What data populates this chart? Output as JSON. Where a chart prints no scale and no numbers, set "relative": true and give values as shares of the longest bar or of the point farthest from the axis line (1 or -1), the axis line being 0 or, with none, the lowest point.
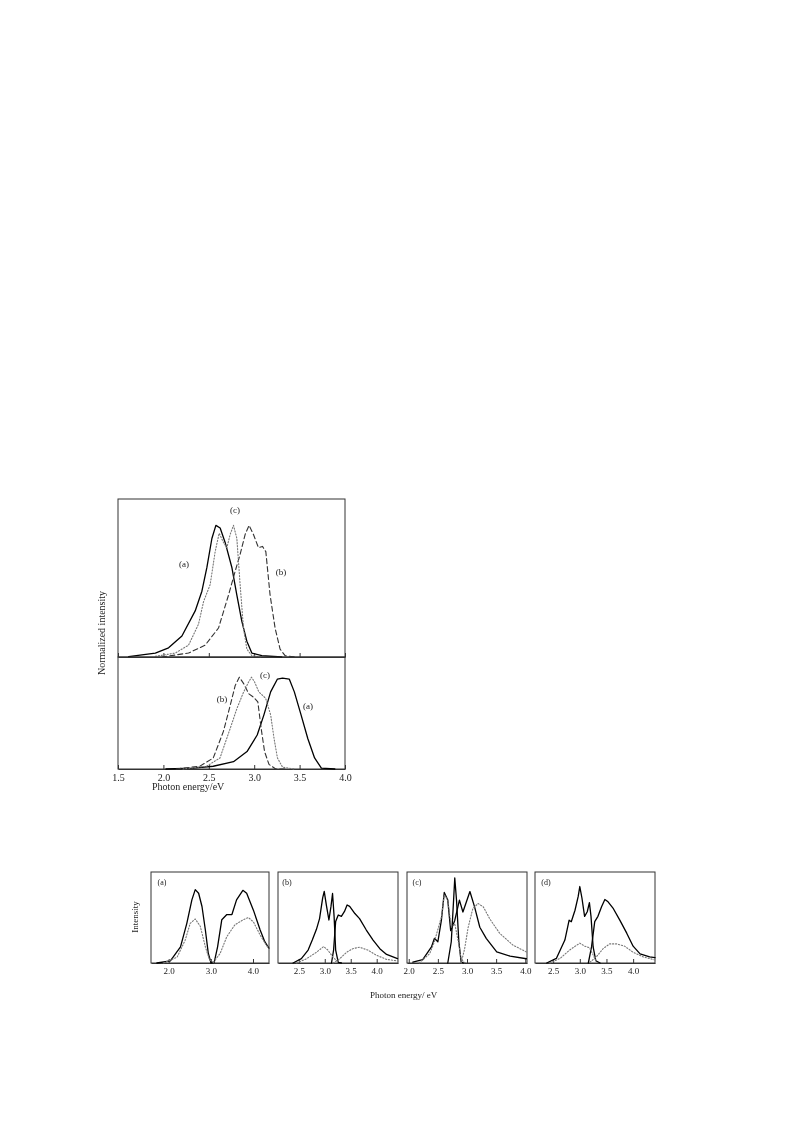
{
  "chart_data": [
    {
      "type": "line",
      "relative": true,
      "ylabel": "Normalized intensity",
      "xlim": [
        1.5,
        4.0
      ],
      "tick_labels": false,
      "xticks": [
        1.5,
        2,
        2.5,
        3,
        3.5,
        4
      ],
      "annotations": [
        "(a)",
        "(b)",
        "(c)"
      ],
      "series": [
        {
          "color": "#000000",
          "line_style": "solid",
          "x": [
            1.617,
            1.911,
            2.057,
            2.204,
            2.35,
            2.424,
            2.479,
            2.534,
            2.578,
            2.625,
            2.68,
            2.754,
            2.809,
            2.864,
            2.919,
            2.974,
            3.084,
            3.304
          ],
          "values": [
            0.003,
            0.03,
            0.07,
            0.16,
            0.35,
            0.5,
            0.68,
            0.9,
            1,
            0.98,
            0.87,
            0.68,
            0.47,
            0.27,
            0.12,
            0.03,
            0.01,
            0
          ]
        },
        {
          "color": "#333333",
          "line_style": "dashed",
          "x": [
            1.984,
            2.277,
            2.46,
            2.607,
            2.717,
            2.79,
            2.845,
            2.9,
            2.944,
            2.992,
            3.047,
            3.091,
            3.128,
            3.175,
            3.23,
            3.285,
            3.34,
            3.45
          ],
          "values": [
            0,
            0.03,
            0.09,
            0.22,
            0.47,
            0.65,
            0.78,
            0.93,
            1,
            0.93,
            0.83,
            0.84,
            0.8,
            0.47,
            0.22,
            0.06,
            0.01,
            0
          ]
        },
        {
          "color": "#777777",
          "line_style": "dotted",
          "x": [
            1.911,
            2.131,
            2.277,
            2.387,
            2.442,
            2.515,
            2.57,
            2.614,
            2.662,
            2.699,
            2.735,
            2.772,
            2.809,
            2.845,
            2.882,
            2.919,
            2.974,
            3.084
          ],
          "values": [
            0.005,
            0.03,
            0.09,
            0.25,
            0.42,
            0.55,
            0.8,
            0.94,
            0.87,
            0.83,
            0.93,
            1,
            0.9,
            0.55,
            0.22,
            0.06,
            0.01,
            0
          ]
        }
      ]
    },
    {
      "type": "line",
      "relative": true,
      "xlabel": "Photon energy/eV",
      "xlim": [
        1.5,
        4.0
      ],
      "xticks": [
        1.5,
        {
          "value": 2,
          "label": "2.0"
        },
        2.5,
        {
          "value": 3,
          "label": "3.0"
        },
        3.5,
        {
          "value": 4,
          "label": "4.0"
        }
      ],
      "annotations": [
        "(b)",
        "(c)",
        "(a)"
      ],
      "series": [
        {
          "color": "#000000",
          "line_style": "solid",
          "x": [
            2.028,
            2.326,
            2.549,
            2.772,
            2.921,
            3.033,
            3.107,
            3.181,
            3.256,
            3.312,
            3.386,
            3.442,
            3.516,
            3.591,
            3.665,
            3.74,
            3.888
          ],
          "values": [
            0,
            0.01,
            0.03,
            0.08,
            0.19,
            0.37,
            0.59,
            0.84,
            0.98,
            0.99,
            0.98,
            0.84,
            0.59,
            0.33,
            0.12,
            0.01,
            0
          ]
        },
        {
          "color": "#333333",
          "line_style": "dashed",
          "x": [
            2.14,
            2.4,
            2.549,
            2.661,
            2.735,
            2.791,
            2.836,
            2.884,
            2.94,
            2.995,
            3.04,
            3.077,
            3.114,
            3.163,
            3.237,
            3.367
          ],
          "values": [
            0,
            0.03,
            0.12,
            0.41,
            0.69,
            0.91,
            1,
            0.93,
            0.82,
            0.78,
            0.73,
            0.44,
            0.19,
            0.05,
            0,
            0
          ]
        },
        {
          "color": "#777777",
          "line_style": "dotted",
          "x": [
            2.214,
            2.475,
            2.623,
            2.735,
            2.81,
            2.884,
            2.94,
            2.97,
            3.003,
            3.051,
            3.126,
            3.181,
            3.219,
            3.256,
            3.312,
            3.442
          ],
          "values": [
            0,
            0.03,
            0.12,
            0.44,
            0.66,
            0.84,
            0.95,
            1,
            0.95,
            0.84,
            0.77,
            0.59,
            0.33,
            0.12,
            0.02,
            0
          ]
        }
      ]
    },
    {
      "type": "line",
      "relative": true,
      "ylabel": "Intensity",
      "xlim": [
        1.58,
        4.38
      ],
      "xticks": [
        {
          "value": 2,
          "label": "2.0"
        },
        {
          "value": 3,
          "label": "3.0"
        },
        {
          "value": 4,
          "label": "4.0"
        }
      ],
      "annotations": [
        "(a)"
      ],
      "series": [
        {
          "color": "#000000",
          "line_style": "solid",
          "x": [
            1.72,
            2.04,
            2.28,
            2.43,
            2.55,
            2.63,
            2.71,
            2.79,
            2.87,
            2.94,
            3.0
          ],
          "values": [
            0,
            0.03,
            0.22,
            0.54,
            0.86,
            1,
            0.95,
            0.77,
            0.45,
            0.13,
            0.01
          ]
        },
        {
          "color": "#000000",
          "line_style": "solid",
          "x": [
            3.0,
            3.08,
            3.16,
            3.26,
            3.38,
            3.5,
            3.61,
            3.76,
            3.85,
            4.01,
            4.17,
            4.28,
            4.38
          ],
          "values": [
            0,
            0.01,
            0.22,
            0.59,
            0.66,
            0.66,
            0.86,
            0.99,
            0.95,
            0.72,
            0.45,
            0.29,
            0.2
          ]
        },
        {
          "color": "#777777",
          "line_style": "dotted",
          "x": [
            1.88,
            2.2,
            2.39,
            2.51,
            2.63,
            2.75,
            2.87,
            2.97,
            3.06
          ],
          "values": [
            0,
            0.08,
            0.31,
            0.54,
            0.6,
            0.5,
            0.22,
            0.04,
            0.01
          ]
        },
        {
          "color": "#777777",
          "line_style": "dotted",
          "x": [
            3.06,
            3.22,
            3.38,
            3.57,
            3.77,
            3.89,
            4.01,
            4.17,
            4.32,
            4.38
          ],
          "values": [
            0.01,
            0.13,
            0.36,
            0.52,
            0.59,
            0.62,
            0.56,
            0.38,
            0.24,
            0.2
          ]
        }
      ]
    },
    {
      "type": "line",
      "relative": true,
      "xlim": [
        2.1,
        4.41
      ],
      "xticks": [
        2.5,
        {
          "value": 3,
          "label": "3.0"
        },
        3.5,
        {
          "value": 4,
          "label": "4.0"
        }
      ],
      "annotations": [
        "(b)"
      ],
      "series": [
        {
          "color": "#000000",
          "line_style": "solid",
          "x": [
            2.39,
            2.55,
            2.68,
            2.76,
            2.84,
            2.9,
            2.96,
            2.99,
            3.03,
            3.08,
            3.12,
            3.15,
            3.18,
            3.21,
            3.26,
            3.32
          ],
          "values": [
            0,
            0.06,
            0.18,
            0.32,
            0.47,
            0.62,
            0.91,
            1,
            0.81,
            0.6,
            0.79,
            0.97,
            0.65,
            0.18,
            0.01,
            0
          ]
        },
        {
          "color": "#000000",
          "line_style": "solid",
          "x": [
            3.13,
            3.17,
            3.21,
            3.26,
            3.32,
            3.38,
            3.43,
            3.48,
            3.58,
            3.67,
            3.8,
            3.93,
            4.06,
            4.19,
            4.4
          ],
          "values": [
            0,
            0.18,
            0.58,
            0.67,
            0.65,
            0.72,
            0.81,
            0.79,
            0.69,
            0.62,
            0.46,
            0.32,
            0.2,
            0.12,
            0.06
          ]
        },
        {
          "color": "#777777",
          "line_style": "dotted",
          "x": [
            2.46,
            2.65,
            2.84,
            2.98,
            3.06,
            3.16,
            3.26
          ],
          "values": [
            0,
            0.06,
            0.15,
            0.23,
            0.18,
            0.08,
            0.01
          ]
        },
        {
          "color": "#777777",
          "line_style": "dotted",
          "x": [
            3.16,
            3.29,
            3.42,
            3.54,
            3.67,
            3.83,
            3.99,
            4.19,
            4.4
          ],
          "values": [
            0,
            0.06,
            0.15,
            0.2,
            0.22,
            0.18,
            0.11,
            0.05,
            0.03
          ]
        }
      ]
    },
    {
      "type": "line",
      "relative": true,
      "xlabel": "Photon energy/ eV",
      "xlim": [
        1.97,
        4.03
      ],
      "xticks": [
        {
          "value": 2,
          "label": "2.0"
        },
        2.5,
        {
          "value": 3,
          "label": "3.0"
        },
        3.5,
        {
          "value": 4,
          "label": "4.0"
        }
      ],
      "annotations": [
        "(c)"
      ],
      "series": [
        {
          "color": "#000000",
          "line_style": "solid",
          "x": [
            2.07,
            2.24,
            2.39,
            2.44,
            2.5,
            2.56,
            2.61,
            2.67,
            2.72,
            2.79,
            2.87,
            2.93,
            2.99,
            3.05,
            3.13,
            3.22,
            3.33,
            3.51,
            3.74,
            4.02
          ],
          "values": [
            0.01,
            0.04,
            0.19,
            0.29,
            0.25,
            0.5,
            0.83,
            0.74,
            0.38,
            0.5,
            0.74,
            0.6,
            0.72,
            0.84,
            0.66,
            0.42,
            0.29,
            0.13,
            0.08,
            0.05
          ]
        },
        {
          "color": "#000000",
          "line_style": "solid",
          "x": [
            2.67,
            2.73,
            2.77,
            2.79,
            2.82,
            2.86,
            2.9,
            2.96
          ],
          "values": [
            0,
            0.25,
            0.74,
            1,
            0.74,
            0.25,
            0.01,
            0
          ]
        },
        {
          "color": "#777777",
          "line_style": "dotted",
          "x": [
            2.18,
            2.36,
            2.44,
            2.56,
            2.61,
            2.67,
            2.73,
            2.79,
            2.84,
            2.9,
            2.96
          ],
          "values": [
            0,
            0.11,
            0.25,
            0.54,
            0.8,
            0.74,
            0.42,
            0.46,
            0.29,
            0.05,
            0
          ]
        },
        {
          "color": "#777777",
          "line_style": "dotted",
          "x": [
            2.9,
            2.96,
            3.02,
            3.1,
            3.19,
            3.28,
            3.39,
            3.56,
            3.79,
            4.02
          ],
          "values": [
            0,
            0.17,
            0.42,
            0.64,
            0.7,
            0.66,
            0.52,
            0.35,
            0.21,
            0.13
          ]
        }
      ]
    },
    {
      "type": "line",
      "relative": true,
      "xlim": [
        2.16,
        4.41
      ],
      "xticks": [
        2.5,
        {
          "value": 3,
          "label": "3.0"
        },
        3.5,
        {
          "value": 4,
          "label": "4.0"
        }
      ],
      "annotations": [
        "(d)"
      ],
      "series": [
        {
          "color": "#000000",
          "line_style": "solid",
          "x": [
            2.38,
            2.56,
            2.72,
            2.8,
            2.84,
            2.91,
            2.97,
            3.0,
            3.04,
            3.09,
            3.14,
            3.18,
            3.21,
            3.25,
            3.3,
            3.38
          ],
          "values": [
            0,
            0.06,
            0.3,
            0.56,
            0.54,
            0.69,
            0.87,
            1,
            0.85,
            0.61,
            0.67,
            0.79,
            0.61,
            0.21,
            0.03,
            0
          ]
        },
        {
          "color": "#000000",
          "line_style": "solid",
          "x": [
            3.16,
            3.22,
            3.28,
            3.34,
            3.41,
            3.47,
            3.53,
            3.63,
            3.75,
            3.88,
            4.0,
            4.13,
            4.31,
            4.41
          ],
          "values": [
            0,
            0.21,
            0.54,
            0.61,
            0.74,
            0.83,
            0.8,
            0.71,
            0.56,
            0.39,
            0.22,
            0.12,
            0.08,
            0.07
          ]
        },
        {
          "color": "#777777",
          "line_style": "dotted",
          "x": [
            2.44,
            2.63,
            2.81,
            3.0,
            3.09,
            3.18,
            3.24,
            3.3
          ],
          "values": [
            0,
            0.06,
            0.17,
            0.26,
            0.22,
            0.2,
            0.12,
            0.03
          ]
        },
        {
          "color": "#777777",
          "line_style": "dotted",
          "x": [
            3.19,
            3.31,
            3.44,
            3.56,
            3.69,
            3.84,
            4.0,
            4.19,
            4.41
          ],
          "values": [
            0.01,
            0.08,
            0.19,
            0.25,
            0.25,
            0.22,
            0.14,
            0.08,
            0.04
          ]
        }
      ]
    }
  ]
}
